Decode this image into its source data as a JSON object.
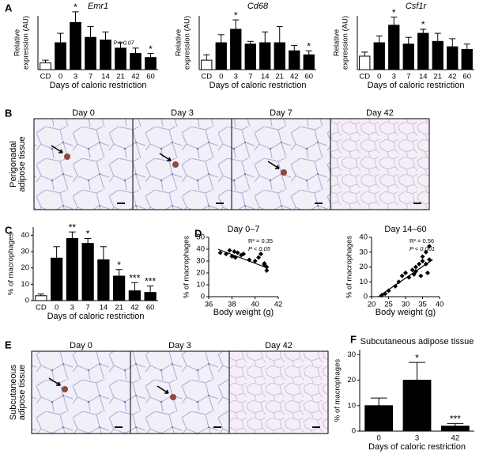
{
  "panel_labels": [
    "A",
    "B",
    "C",
    "D",
    "E",
    "F"
  ],
  "chart_data": [
    {
      "type": "bar",
      "title": "Emr1",
      "categories": [
        "CD",
        "0",
        "3",
        "7",
        "14",
        "21",
        "42",
        "60"
      ],
      "values": [
        25,
        100,
        175,
        120,
        110,
        80,
        60,
        45
      ],
      "errors": [
        10,
        35,
        40,
        40,
        30,
        20,
        20,
        15
      ],
      "colors": [
        "#ffffff",
        "#000000",
        "#000000",
        "#000000",
        "#000000",
        "#000000",
        "#000000",
        "#000000"
      ],
      "significance": [
        null,
        null,
        "*",
        null,
        null,
        null,
        "P = 0.07",
        "*"
      ],
      "ylabel": [
        "Relative",
        "expression (AU)"
      ],
      "xlabel": "Days of caloric restriction",
      "ylim": [
        0,
        200
      ]
    },
    {
      "type": "bar",
      "title": "Cd68",
      "categories": [
        "CD",
        "0",
        "3",
        "7",
        "14",
        "21",
        "42",
        "60"
      ],
      "values": [
        35,
        100,
        150,
        95,
        100,
        100,
        70,
        55
      ],
      "errors": [
        20,
        30,
        35,
        10,
        40,
        60,
        20,
        15
      ],
      "colors": [
        "#ffffff",
        "#000000",
        "#000000",
        "#000000",
        "#000000",
        "#000000",
        "#000000",
        "#000000"
      ],
      "significance": [
        null,
        null,
        "*",
        null,
        null,
        null,
        null,
        "*"
      ],
      "ylabel": [
        "Relative",
        "expression (AU)"
      ],
      "xlabel": "Days of caloric restriction",
      "ylim": [
        0,
        200
      ]
    },
    {
      "type": "bar",
      "title": "Csf1r",
      "categories": [
        "CD",
        "0",
        "3",
        "7",
        "14",
        "21",
        "42",
        "60"
      ],
      "values": [
        50,
        100,
        165,
        95,
        135,
        105,
        85,
        75
      ],
      "errors": [
        15,
        25,
        30,
        25,
        15,
        30,
        30,
        20
      ],
      "colors": [
        "#ffffff",
        "#000000",
        "#000000",
        "#000000",
        "#000000",
        "#000000",
        "#000000",
        "#000000"
      ],
      "significance": [
        null,
        null,
        "*",
        null,
        "*",
        null,
        null,
        null
      ],
      "ylabel": [
        "Relative",
        "expression (AU)"
      ],
      "xlabel": "Days of caloric restriction",
      "ylim": [
        0,
        200
      ]
    },
    {
      "type": "bar",
      "categories": [
        "CD",
        "0",
        "3",
        "7",
        "14",
        "21",
        "42",
        "60"
      ],
      "values": [
        3,
        26,
        38,
        35,
        25,
        15,
        6,
        5
      ],
      "errors": [
        1,
        7,
        4,
        3,
        8,
        4,
        5,
        4
      ],
      "colors": [
        "#ffffff",
        "#000000",
        "#000000",
        "#000000",
        "#000000",
        "#000000",
        "#000000",
        "#000000"
      ],
      "significance": [
        null,
        null,
        "**",
        "*",
        null,
        "*",
        "***",
        "***"
      ],
      "ylabel": [
        "% of macrophages"
      ],
      "xlabel": "Days of caloric restriction",
      "ylim": [
        0,
        45
      ],
      "yticks": [
        0,
        10,
        20,
        30,
        40
      ]
    },
    {
      "type": "scatter",
      "title": "Day 0–7",
      "x": [
        37,
        37.5,
        37.8,
        38,
        38.2,
        38.3,
        38.5,
        38.8,
        39,
        39.5,
        40,
        40.3,
        40.5,
        40.8,
        40.8,
        41,
        41
      ],
      "y": [
        37,
        36,
        39,
        34,
        38,
        33,
        37,
        35,
        36,
        31,
        30,
        33,
        36,
        28,
        27,
        25,
        22
      ],
      "color": "#000000",
      "fit": {
        "x": [
          36.8,
          41.1
        ],
        "y": [
          40,
          24
        ]
      },
      "annotations": [
        "R² = 0.35",
        "P < 0.05"
      ],
      "xlabel": "Body weight (g)",
      "ylabel": [
        "% of macrophages"
      ],
      "xlim": [
        36,
        42
      ],
      "xticks": [
        36,
        38,
        40,
        42
      ],
      "ylim": [
        0,
        50
      ],
      "yticks": [
        0,
        10,
        20,
        30,
        40,
        50
      ]
    },
    {
      "type": "scatter",
      "title": "Day 14–60",
      "x": [
        23,
        24,
        25,
        27,
        28,
        29,
        30,
        31,
        32,
        32.5,
        33,
        33,
        34,
        34.5,
        35,
        35,
        36,
        36,
        36.5,
        37,
        37
      ],
      "y": [
        1,
        2,
        4,
        7,
        10,
        14,
        16,
        13,
        18,
        15,
        20,
        17,
        22,
        14,
        24,
        27,
        22,
        30,
        16,
        34,
        25
      ],
      "color": "#000000",
      "fit": {
        "x": [
          22,
          38
        ],
        "y": [
          0,
          25
        ]
      },
      "annotations": [
        "R² = 0.56",
        "P < 0.001"
      ],
      "xlabel": "Body weight (g)",
      "ylabel": [
        "% of macrophages"
      ],
      "xlim": [
        20,
        40
      ],
      "xticks": [
        20,
        25,
        30,
        35,
        40
      ],
      "ylim": [
        0,
        40
      ],
      "yticks": [
        0,
        10,
        20,
        30,
        40
      ]
    },
    {
      "type": "bar",
      "title": "Subcutaneous adipose tissue",
      "categories": [
        "0",
        "3",
        "42"
      ],
      "values": [
        10,
        20,
        2
      ],
      "errors": [
        3,
        7,
        1
      ],
      "colors": [
        "#000000",
        "#000000",
        "#000000"
      ],
      "significance": [
        null,
        "*",
        "***"
      ],
      "ylabel": [
        "% of macrophages"
      ],
      "xlabel": "Days of caloric restriction",
      "ylim": [
        0,
        32
      ],
      "yticks": [
        0,
        10,
        20,
        30
      ]
    }
  ],
  "micrographs": [
    {
      "tissue": [
        "Perigonadal",
        "adipose tissue"
      ],
      "days": [
        "Day 0",
        "Day 3",
        "Day 7",
        "Day 42"
      ]
    },
    {
      "tissue": [
        "Subcutaneous",
        "adipose tissue"
      ],
      "days": [
        "Day 0",
        "Day 3",
        "Day 42"
      ]
    }
  ]
}
